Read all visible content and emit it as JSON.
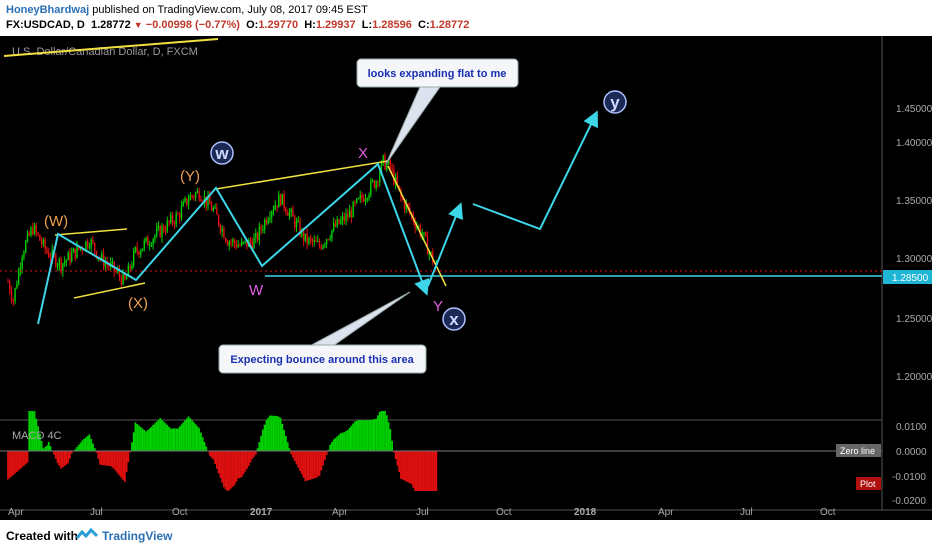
{
  "header": {
    "author": "HoneyBhardwaj",
    "published": "published on TradingView.com, July 08, 2017 09:45 EST",
    "symbol": "FX:USDCAD, D",
    "last": "1.28772",
    "change": "−0.00998 (−0.77%)",
    "open_label": "O:",
    "open": "1.29770",
    "high_label": "H:",
    "high": "1.29937",
    "low_label": "L:",
    "low": "1.28596",
    "close_label": "C:",
    "close": "1.28772"
  },
  "footer": {
    "created_with": "Created with",
    "brand": "TradingView"
  },
  "chart_data": {
    "type": "candlestick",
    "instrument": "U.S. Dollar/Canadian Dollar, D, FXCM",
    "price_axis": {
      "ticks": [
        "1.45000",
        "1.40000",
        "1.35000",
        "1.30000",
        "1.25000",
        "1.20000"
      ],
      "ylim": [
        1.16,
        1.48
      ]
    },
    "current_price_label": "1.28500",
    "time_axis": {
      "ticks": [
        "Apr",
        "Jul",
        "Oct",
        "2017",
        "Apr",
        "Jul",
        "Oct",
        "2018",
        "Apr",
        "Jul",
        "Oct"
      ]
    },
    "price_path": [
      [
        0,
        1.275
      ],
      [
        3,
        1.26
      ],
      [
        8,
        1.3
      ],
      [
        14,
        1.32
      ],
      [
        22,
        1.3
      ],
      [
        30,
        1.29
      ],
      [
        38,
        1.3
      ],
      [
        46,
        1.31
      ],
      [
        52,
        1.295
      ],
      [
        60,
        1.285
      ],
      [
        66,
        1.275
      ],
      [
        72,
        1.3
      ],
      [
        80,
        1.31
      ],
      [
        88,
        1.32
      ],
      [
        96,
        1.33
      ],
      [
        102,
        1.345
      ],
      [
        108,
        1.35
      ],
      [
        116,
        1.335
      ],
      [
        124,
        1.31
      ],
      [
        132,
        1.305
      ],
      [
        140,
        1.31
      ],
      [
        148,
        1.335
      ],
      [
        154,
        1.345
      ],
      [
        160,
        1.33
      ],
      [
        168,
        1.31
      ],
      [
        176,
        1.305
      ],
      [
        184,
        1.32
      ],
      [
        192,
        1.33
      ],
      [
        200,
        1.345
      ],
      [
        208,
        1.36
      ],
      [
        212,
        1.375
      ],
      [
        216,
        1.37
      ],
      [
        222,
        1.345
      ],
      [
        228,
        1.33
      ],
      [
        234,
        1.315
      ],
      [
        238,
        1.3
      ],
      [
        242,
        1.2877
      ]
    ],
    "wave_labels": [
      {
        "text": "(W)",
        "color": "#f0a050"
      },
      {
        "text": "(X)",
        "color": "#f0a050"
      },
      {
        "text": "(Y)",
        "color": "#f0a050"
      },
      {
        "text": "W",
        "color": "#e060e0"
      },
      {
        "text": "X",
        "color": "#e060e0"
      },
      {
        "text": "Y",
        "color": "#e060e0"
      }
    ],
    "circle_labels": [
      "w",
      "x",
      "y"
    ],
    "callouts": [
      "looks expanding flat to me",
      "Expecting bounce around this area"
    ],
    "macd": {
      "label": "MACD 4C",
      "axis_ticks": [
        "0.0100",
        "0.0000",
        "-0.0100",
        "-0.0200"
      ],
      "zero_line_label": "Zero line",
      "plot_label": "Plot"
    },
    "colors": {
      "candle_up": "#00d000",
      "candle_down": "#e01010",
      "arrow": "#3cd6e8",
      "trendline": "#f0e040",
      "level_line": "#3cd6e8",
      "bg": "#000000"
    }
  }
}
